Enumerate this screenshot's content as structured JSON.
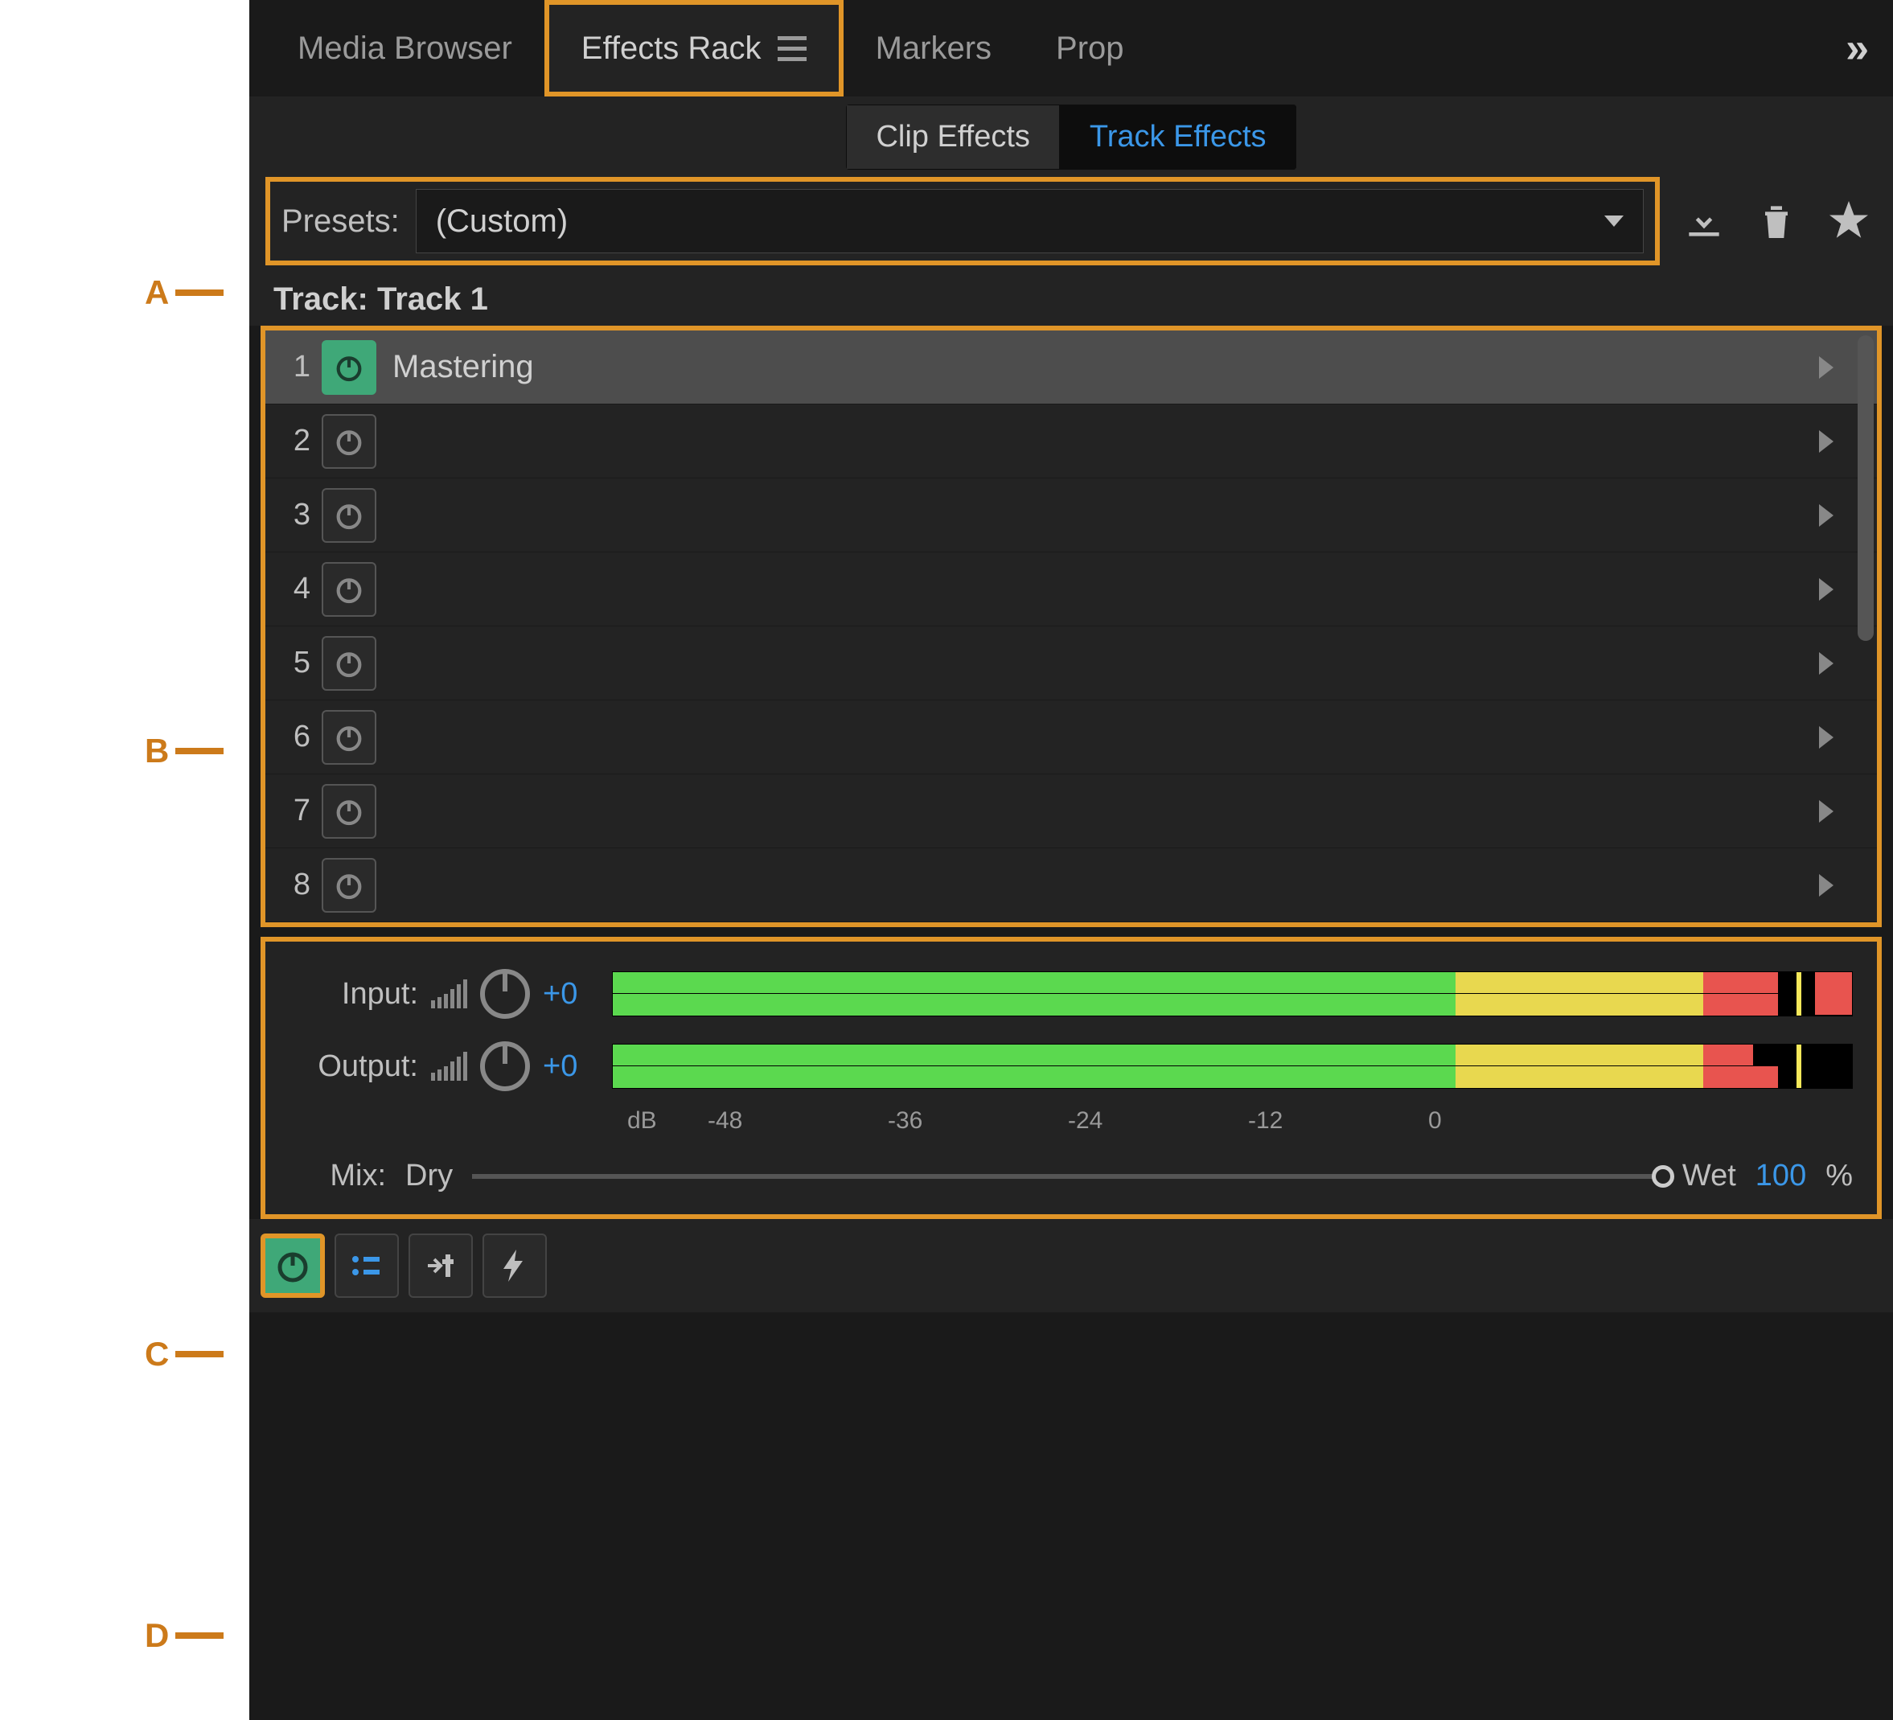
{
  "annotations": {
    "a": "A",
    "b": "B",
    "c": "C",
    "d": "D"
  },
  "tabs": {
    "media_browser": "Media Browser",
    "effects_rack": "Effects Rack",
    "markers": "Markers",
    "properties": "Prop"
  },
  "subtabs": {
    "clip": "Clip Effects",
    "track": "Track Effects"
  },
  "presets": {
    "label": "Presets:",
    "value": "(Custom)"
  },
  "track_label": "Track: Track 1",
  "slots": [
    {
      "num": "1",
      "name": "Mastering",
      "active": true,
      "selected": true
    },
    {
      "num": "2",
      "name": "",
      "active": false,
      "selected": false
    },
    {
      "num": "3",
      "name": "",
      "active": false,
      "selected": false
    },
    {
      "num": "4",
      "name": "",
      "active": false,
      "selected": false
    },
    {
      "num": "5",
      "name": "",
      "active": false,
      "selected": false
    },
    {
      "num": "6",
      "name": "",
      "active": false,
      "selected": false
    },
    {
      "num": "7",
      "name": "",
      "active": false,
      "selected": false
    },
    {
      "num": "8",
      "name": "",
      "active": false,
      "selected": false
    }
  ],
  "meters": {
    "input_label": "Input:",
    "input_value": "+0",
    "output_label": "Output:",
    "output_value": "+0",
    "db_ticks": [
      "dB",
      "-48",
      "-36",
      "-24",
      "-12",
      "0"
    ],
    "levels": {
      "input": {
        "green_pct": 68,
        "yellow_pct": 20,
        "red_pct": 6,
        "peak_pct": 96
      },
      "output": {
        "green_pct": 68,
        "yellow_pct": 20,
        "red_top_pct": 4,
        "red_bot_pct": 6,
        "peak_pct": 96
      }
    }
  },
  "mix": {
    "label": "Mix:",
    "dry": "Dry",
    "wet": "Wet",
    "value": "100",
    "pct": "%"
  },
  "colors": {
    "highlight": "#e09528",
    "accent_blue": "#3b97e8",
    "active_green": "#3fa878",
    "meter_green": "#5bd94f",
    "meter_yellow": "#e8d84f",
    "meter_red": "#e8544f"
  }
}
